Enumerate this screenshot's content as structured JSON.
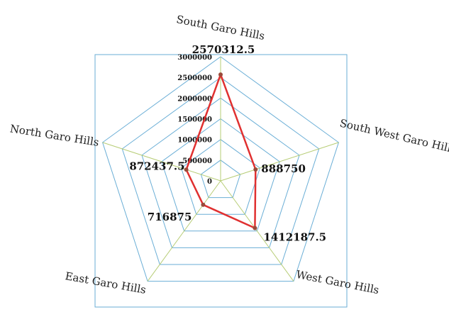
{
  "chart_data": {
    "type": "radar",
    "categories": [
      "South Garo Hills",
      "South West Garo Hills",
      "West Garo Hills",
      "East Garo Hills",
      "North Garo Hills"
    ],
    "series": [
      {
        "values": [
          2570312.5,
          888750,
          1412187.5,
          716875,
          872437.5
        ],
        "value_labels": [
          "2570312.5",
          "888750",
          "1412187.5",
          "716875",
          "872437.5"
        ]
      }
    ],
    "ticks": [
      "0",
      "500000",
      "1000000",
      "1500000",
      "2000000",
      "2500000",
      "3000000"
    ],
    "tick_values": [
      0,
      500000,
      1000000,
      1500000,
      2000000,
      2500000,
      3000000
    ],
    "rmax": 3000000,
    "colors": {
      "series": "#e03030",
      "marker": "#9a4a3a",
      "grid": "#6aaed6",
      "spoke": "#b6cc74",
      "frame": "#6aaed6"
    }
  }
}
